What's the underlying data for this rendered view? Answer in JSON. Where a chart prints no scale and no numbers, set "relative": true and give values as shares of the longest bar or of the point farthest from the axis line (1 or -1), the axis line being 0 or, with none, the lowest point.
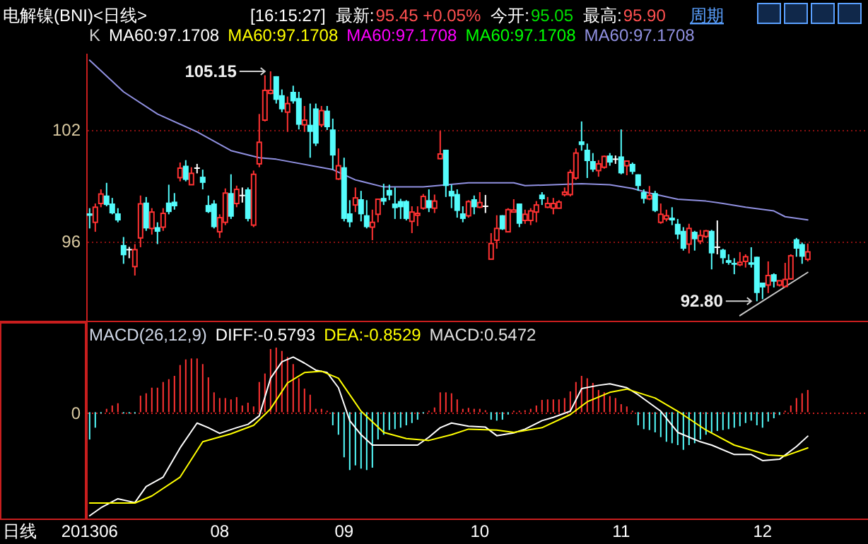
{
  "chart_data": [
    {
      "type": "candlestick",
      "title": "电解镍(BNI)<日线>",
      "tick_labels": "y",
      "categories": [
        "201306",
        null,
        null,
        null,
        null,
        null,
        null,
        null,
        null,
        null,
        null,
        null,
        null,
        null,
        null,
        null,
        null,
        null,
        null,
        null,
        null,
        null,
        null,
        "08",
        null,
        null,
        null,
        null,
        null,
        null,
        null,
        null,
        null,
        null,
        null,
        null,
        null,
        null,
        null,
        null,
        null,
        null,
        null,
        null,
        null,
        "09",
        null,
        null,
        null,
        null,
        null,
        null,
        null,
        null,
        null,
        null,
        null,
        null,
        null,
        null,
        null,
        null,
        null,
        null,
        null,
        null,
        null,
        null,
        null,
        "10",
        null,
        null,
        null,
        null,
        null,
        null,
        null,
        null,
        null,
        null,
        null,
        null,
        null,
        null,
        null,
        null,
        null,
        null,
        null,
        null,
        null,
        null,
        null,
        null,
        "11",
        null,
        null,
        null,
        null,
        null,
        null,
        null,
        null,
        null,
        null,
        null,
        null,
        null,
        null,
        null,
        null,
        null,
        null,
        null,
        null,
        null,
        null,
        null,
        null,
        "12",
        null,
        null,
        null,
        null,
        null,
        null,
        null,
        null
      ],
      "ohlc": [
        [
          97.52,
          97.8,
          96.71,
          97.39
        ],
        [
          97.04,
          98.05,
          96.53,
          97.85
        ],
        [
          98.05,
          98.81,
          97.85,
          98.56
        ],
        [
          98.48,
          99.16,
          97.9,
          97.97
        ],
        [
          98.05,
          98.35,
          97.47,
          97.52
        ],
        [
          97.52,
          97.8,
          97.04,
          97.14
        ],
        [
          95.82,
          96.25,
          94.81,
          95.27
        ],
        [
          95.57,
          95.72,
          95.11,
          95.57
        ],
        [
          94.66,
          95.87,
          94.18,
          95.57
        ],
        [
          96.2,
          98.48,
          95.7,
          98.03
        ],
        [
          98.1,
          98.4,
          96.58,
          96.71
        ],
        [
          96.71,
          97.8,
          96.38,
          97.59
        ],
        [
          96.78,
          97.04,
          95.87,
          96.53
        ],
        [
          96.78,
          97.8,
          96.58,
          97.52
        ],
        [
          98.1,
          99.06,
          97.47,
          97.59
        ],
        [
          98.15,
          98.61,
          97.72,
          97.9
        ],
        [
          99.44,
          100.25,
          99.24,
          99.95
        ],
        [
          100.08,
          100.38,
          99.24,
          99.32
        ],
        [
          99.06,
          100.0,
          99.06,
          99.67
        ],
        [
          99.95,
          100.18,
          99.67,
          99.95
        ],
        [
          99.49,
          99.87,
          98.81,
          99.16
        ],
        [
          97.97,
          98.48,
          97.54,
          97.59
        ],
        [
          98.05,
          98.23,
          96.71,
          96.78
        ],
        [
          96.53,
          97.47,
          96.2,
          97.29
        ],
        [
          97.04,
          98.86,
          96.89,
          98.61
        ],
        [
          98.61,
          99.62,
          97.22,
          97.34
        ],
        [
          98.05,
          99.01,
          97.85,
          98.81
        ],
        [
          98.48,
          98.91,
          98.1,
          98.48
        ],
        [
          98.81,
          98.91,
          97.09,
          97.22
        ],
        [
          96.89,
          99.82,
          96.78,
          99.62
        ],
        [
          100.18,
          102.86,
          100.0,
          101.34
        ],
        [
          102.53,
          104.94,
          102.46,
          104.13
        ],
        [
          103.97,
          105.15,
          103.92,
          104.13
        ],
        [
          104.89,
          104.89,
          103.42,
          103.62
        ],
        [
          103.87,
          104.18,
          102.96,
          103.11
        ],
        [
          102.96,
          103.8,
          101.9,
          103.42
        ],
        [
          104.05,
          104.38,
          103.42,
          103.54
        ],
        [
          103.72,
          104.05,
          102.03,
          102.28
        ],
        [
          102.28,
          103.29,
          101.9,
          102.53
        ],
        [
          102.28,
          103.42,
          100.51,
          101.9
        ],
        [
          103.16,
          103.42,
          101.14,
          101.27
        ],
        [
          102.28,
          103.29,
          102.15,
          103.04
        ],
        [
          103.04,
          103.29,
          102.0,
          102.15
        ],
        [
          102.03,
          102.61,
          99.87,
          100.63
        ],
        [
          99.37,
          101.01,
          99.32,
          100.08
        ],
        [
          100.0,
          100.51,
          97.09,
          97.22
        ],
        [
          97.52,
          98.23,
          96.78,
          97.04
        ],
        [
          97.97,
          98.91,
          97.59,
          98.35
        ],
        [
          98.28,
          98.73,
          97.09,
          97.47
        ],
        [
          97.42,
          98.23,
          96.71,
          96.78
        ],
        [
          96.78,
          97.72,
          96.08,
          97.04
        ],
        [
          97.47,
          98.3,
          97.04,
          98.28
        ],
        [
          98.35,
          99.11,
          97.97,
          98.15
        ],
        [
          98.78,
          99.06,
          98.23,
          98.48
        ],
        [
          98.05,
          98.91,
          97.22,
          97.8
        ],
        [
          98.18,
          98.3,
          97.22,
          97.85
        ],
        [
          98.18,
          98.23,
          97.14,
          97.22
        ],
        [
          97.09,
          97.9,
          96.46,
          97.59
        ],
        [
          97.42,
          97.9,
          96.84,
          97.52
        ],
        [
          97.8,
          98.56,
          97.72,
          98.43
        ],
        [
          98.23,
          98.81,
          97.59,
          97.8
        ],
        [
          97.8,
          98.53,
          97.54,
          98.18
        ],
        [
          100.46,
          101.95,
          100.43,
          100.71
        ],
        [
          100.94,
          100.94,
          98.4,
          98.99
        ],
        [
          98.73,
          99.06,
          97.8,
          98.43
        ],
        [
          98.56,
          98.81,
          97.29,
          97.65
        ],
        [
          97.52,
          97.9,
          97.04,
          97.22
        ],
        [
          97.39,
          98.23,
          97.29,
          98.15
        ],
        [
          98.28,
          98.48,
          97.47,
          97.85
        ],
        [
          97.85,
          98.66,
          97.8,
          98.1
        ],
        [
          97.9,
          98.51,
          97.54,
          97.9
        ],
        [
          95.06,
          96.46,
          95.06,
          95.9
        ],
        [
          96.08,
          97.42,
          95.62,
          96.71
        ],
        [
          97.42,
          97.42,
          96.63,
          96.66
        ],
        [
          96.53,
          97.8,
          96.53,
          97.72
        ],
        [
          97.59,
          98.28,
          97.59,
          97.7
        ],
        [
          98.05,
          98.05,
          96.78,
          96.96
        ],
        [
          97.14,
          97.72,
          96.96,
          97.47
        ],
        [
          97.14,
          97.8,
          96.89,
          97.65
        ],
        [
          97.59,
          98.18,
          97.04,
          97.97
        ],
        [
          98.53,
          98.66,
          97.97,
          98.28
        ],
        [
          97.85,
          98.4,
          97.8,
          98.05
        ],
        [
          97.8,
          98.35,
          97.47,
          98.05
        ],
        [
          97.8,
          98.23,
          97.77,
          98.13
        ],
        [
          98.53,
          98.91,
          98.43,
          98.66
        ],
        [
          98.53,
          99.87,
          98.43,
          99.72
        ],
        [
          99.42,
          101.01,
          99.32,
          100.76
        ],
        [
          101.39,
          102.46,
          100.89,
          101.19
        ],
        [
          100.94,
          101.27,
          99.42,
          100.33
        ],
        [
          100.33,
          100.76,
          99.75,
          99.87
        ],
        [
          99.82,
          100.38,
          99.49,
          100.18
        ],
        [
          100.0,
          100.63,
          99.92,
          100.58
        ],
        [
          100.63,
          100.76,
          100.08,
          100.25
        ],
        [
          100.43,
          100.63,
          100.18,
          100.43
        ],
        [
          100.58,
          102.03,
          99.62,
          99.67
        ],
        [
          100.08,
          100.33,
          99.57,
          100.33
        ],
        [
          100.18,
          100.25,
          99.62,
          99.75
        ],
        [
          99.62,
          99.62,
          98.73,
          98.99
        ],
        [
          98.66,
          98.81,
          98.05,
          98.3
        ],
        [
          98.3,
          98.99,
          98.23,
          98.48
        ],
        [
          98.61,
          98.73,
          97.59,
          97.65
        ],
        [
          97.04,
          98.05,
          96.96,
          97.47
        ],
        [
          97.22,
          97.72,
          97.09,
          97.39
        ],
        [
          97.29,
          97.85,
          96.89,
          97.14
        ],
        [
          96.96,
          97.22,
          96.13,
          96.38
        ],
        [
          96.58,
          96.78,
          95.52,
          95.62
        ],
        [
          95.87,
          96.96,
          95.37,
          96.71
        ],
        [
          96.53,
          96.58,
          95.52,
          96.13
        ],
        [
          96.03,
          96.63,
          95.87,
          96.33
        ],
        [
          96.28,
          96.63,
          96.2,
          96.58
        ],
        [
          96.58,
          96.63,
          94.51,
          95.37
        ],
        [
          95.7,
          97.14,
          95.32,
          95.7
        ],
        [
          95.57,
          95.62,
          94.81,
          95.11
        ],
        [
          95.01,
          95.32,
          94.76,
          94.86
        ],
        [
          94.86,
          95.11,
          94.25,
          94.76
        ],
        [
          94.76,
          95.44,
          94.68,
          94.89
        ],
        [
          94.94,
          95.32,
          94.61,
          95.19
        ],
        [
          94.89,
          95.7,
          94.61,
          94.76
        ],
        [
          95.19,
          95.19,
          92.8,
          93.24
        ],
        [
          93.8,
          93.8,
          92.91,
          93.54
        ],
        [
          93.67,
          94.94,
          93.24,
          94.18
        ],
        [
          94.25,
          94.3,
          93.54,
          93.85
        ],
        [
          93.67,
          93.92,
          93.59,
          93.9
        ],
        [
          93.59,
          94.86,
          93.54,
          93.97
        ],
        [
          94.0,
          95.32,
          93.95,
          95.24
        ],
        [
          96.13,
          96.2,
          95.19,
          95.62
        ],
        [
          95.87,
          95.95,
          94.81,
          95.19
        ],
        [
          95.05,
          95.9,
          94.94,
          95.45
        ]
      ],
      "series": [
        {
          "name": "MA60:97.1708",
          "type": "line",
          "color": "#9090e0",
          "values": [
            105.75,
            null,
            null,
            null,
            null,
            null,
            104.05,
            null,
            null,
            null,
            null,
            null,
            102.86,
            null,
            null,
            null,
            null,
            null,
            null,
            101.9,
            null,
            null,
            null,
            null,
            null,
            100.89,
            null,
            null,
            null,
            null,
            100.51,
            null,
            null,
            100.43,
            null,
            null,
            null,
            null,
            null,
            null,
            null,
            null,
            null,
            99.87,
            null,
            null,
            null,
            99.32,
            null,
            null,
            null,
            null,
            98.94,
            null,
            null,
            null,
            null,
            null,
            null,
            98.94,
            null,
            null,
            null,
            null,
            null,
            null,
            null,
            99.16,
            null,
            null,
            null,
            null,
            null,
            null,
            null,
            99.16,
            null,
            99.01,
            null,
            null,
            null,
            null,
            null,
            null,
            null,
            null,
            null,
            99.11,
            null,
            null,
            null,
            null,
            99.06,
            null,
            null,
            null,
            98.86,
            null,
            null,
            98.61,
            null,
            null,
            null,
            null,
            98.28,
            null,
            null,
            null,
            null,
            98.18,
            null,
            null,
            98.05,
            null,
            null,
            null,
            97.85,
            null,
            null,
            null,
            null,
            97.65,
            null,
            97.34,
            null,
            null,
            null,
            97.17
          ]
        },
        {
          "type": "line",
          "color": "#c8c8c8",
          "values": [
            null,
            null,
            null,
            null,
            null,
            null,
            null,
            null,
            null,
            null,
            null,
            null,
            null,
            null,
            null,
            null,
            null,
            null,
            null,
            null,
            null,
            null,
            null,
            null,
            null,
            null,
            null,
            null,
            null,
            null,
            null,
            null,
            null,
            null,
            null,
            null,
            null,
            null,
            null,
            null,
            null,
            null,
            null,
            null,
            null,
            null,
            null,
            null,
            null,
            null,
            null,
            null,
            null,
            null,
            null,
            null,
            null,
            null,
            null,
            null,
            null,
            null,
            null,
            null,
            null,
            null,
            null,
            null,
            null,
            null,
            null,
            null,
            null,
            null,
            null,
            null,
            null,
            null,
            null,
            null,
            null,
            null,
            null,
            null,
            null,
            null,
            null,
            null,
            null,
            null,
            null,
            null,
            null,
            null,
            null,
            null,
            null,
            null,
            null,
            null,
            null,
            null,
            null,
            null,
            null,
            null,
            null,
            null,
            null,
            null,
            null,
            null,
            null,
            null,
            null,
            92.03,
            null,
            null,
            null,
            null,
            null,
            null,
            null,
            null,
            null,
            null,
            null,
            94.35
          ]
        }
      ],
      "ylim": [
        91.75,
        106.1
      ],
      "yticks": [
        96,
        102
      ],
      "grid": "y",
      "annotations": [
        "[16:15:27]",
        "最新:",
        "95.45 +0.05%",
        "今开:",
        "95.05",
        "最高:",
        "95.90",
        "周期",
        "K",
        "MA60:97.1708",
        "MA60:97.1708",
        "MA60:97.1708",
        "MA60:97.1708",
        "105.15",
        "92.80"
      ]
    },
    {
      "type": "bar",
      "title": "MACD(26,12,9)",
      "relative": true,
      "tick_labels": "x",
      "categories": [
        "201306",
        null,
        null,
        null,
        null,
        null,
        null,
        null,
        null,
        null,
        null,
        null,
        null,
        null,
        null,
        null,
        null,
        null,
        null,
        null,
        null,
        null,
        null,
        "08",
        null,
        null,
        null,
        null,
        null,
        null,
        null,
        null,
        null,
        null,
        null,
        null,
        null,
        null,
        null,
        null,
        null,
        null,
        null,
        null,
        null,
        "09",
        null,
        null,
        null,
        null,
        null,
        null,
        null,
        null,
        null,
        null,
        null,
        null,
        null,
        null,
        null,
        null,
        null,
        null,
        null,
        null,
        null,
        null,
        null,
        "10",
        null,
        null,
        null,
        null,
        null,
        null,
        null,
        null,
        null,
        null,
        null,
        null,
        null,
        null,
        null,
        null,
        null,
        null,
        null,
        null,
        null,
        null,
        null,
        null,
        "11",
        null,
        null,
        null,
        null,
        null,
        null,
        null,
        null,
        null,
        null,
        null,
        null,
        null,
        null,
        null,
        null,
        null,
        null,
        null,
        null,
        null,
        null,
        null,
        null,
        "12",
        null,
        null,
        null,
        null,
        null,
        null,
        null,
        null
      ],
      "series": [
        {
          "name": "DIFF:-0.5793",
          "type": "line",
          "color": "#ffffff",
          "values": [
            -1,
            null,
            -0.923,
            null,
            null,
            -0.836,
            null,
            null,
            -0.873,
            null,
            -0.718,
            null,
            null,
            -0.627,
            null,
            null,
            -0.345,
            null,
            null,
            -0.105,
            null,
            -0.15,
            null,
            -0.205,
            null,
            null,
            -0.15,
            null,
            -0.118,
            null,
            -0.036,
            null,
            0.327,
            null,
            0.486,
            null,
            0.532,
            null,
            0.473,
            null,
            0.405,
            null,
            0.382,
            null,
            0.236,
            null,
            -0.082,
            null,
            -0.218,
            null,
            -0.318,
            null,
            -0.318,
            null,
            null,
            null,
            -0.318,
            null,
            -0.318,
            null,
            -0.241,
            null,
            -0.15,
            null,
            -0.105,
            null,
            null,
            -0.136,
            null,
            null,
            -0.145,
            null,
            -0.227,
            null,
            null,
            -0.2,
            null,
            -0.164,
            null,
            null,
            -0.082,
            null,
            -0.05,
            null,
            null,
            0.009,
            null,
            0.227,
            null,
            null,
            0.259,
            null,
            0.273,
            null,
            null,
            0.236,
            null,
            0.168,
            null,
            null,
            null,
            0.009,
            null,
            null,
            -0.195,
            null,
            null,
            null,
            -0.286,
            null,
            -0.318,
            null,
            null,
            null,
            -0.409,
            null,
            null,
            -0.409,
            null,
            -0.468,
            null,
            null,
            -0.455,
            null,
            null,
            -0.332,
            null,
            -0.232
          ]
        },
        {
          "name": "DEA:-0.8529",
          "type": "line",
          "color": "#ffff00",
          "values": [
            -0.877,
            null,
            null,
            null,
            null,
            null,
            null,
            null,
            -0.877,
            null,
            null,
            -0.809,
            null,
            null,
            null,
            null,
            -0.627,
            null,
            null,
            null,
            -0.286,
            null,
            null,
            null,
            null,
            -0.209,
            null,
            null,
            null,
            -0.127,
            null,
            null,
            0.032,
            null,
            null,
            0.282,
            null,
            null,
            0.382,
            null,
            null,
            0.395,
            null,
            null,
            0.327,
            null,
            null,
            null,
            0.009,
            null,
            null,
            null,
            -0.195,
            null,
            null,
            null,
            -0.255,
            null,
            null,
            null,
            -0.273,
            null,
            null,
            null,
            -0.218,
            null,
            null,
            -0.164,
            null,
            null,
            null,
            null,
            -0.173,
            null,
            null,
            -0.195,
            null,
            null,
            null,
            null,
            -0.15,
            null,
            null,
            null,
            null,
            -0.023,
            null,
            null,
            0.1,
            null,
            null,
            null,
            0.191,
            null,
            null,
            0.223,
            null,
            null,
            null,
            null,
            0.136,
            null,
            null,
            null,
            0.009,
            null,
            null,
            null,
            null,
            -0.173,
            null,
            null,
            null,
            null,
            -0.318,
            null,
            null,
            null,
            null,
            null,
            -0.414,
            null,
            null,
            -0.423,
            null,
            null,
            null,
            -0.345
          ]
        },
        {
          "type": "bar",
          "values": [
            -0.264,
            -0.15,
            -0.01,
            0.032,
            0.064,
            0.086,
            -0.01,
            -0.01,
            -0.01,
            0.159,
            0.182,
            0.236,
            0.236,
            0.291,
            0.318,
            0.35,
            0.455,
            0.509,
            0.518,
            0.518,
            0.464,
            0.336,
            0.191,
            0.136,
            0.136,
            0.123,
            0.145,
            0.064,
            0.091,
            0.055,
            0.291,
            0.373,
            0.609,
            0.623,
            0.591,
            0.532,
            0.464,
            0.327,
            0.227,
            0.168,
            0.032,
            0.032,
            0.01,
            -0.127,
            -0.218,
            -0.436,
            -0.559,
            -0.514,
            -0.545,
            -0.559,
            -0.536,
            -0.264,
            -0.218,
            -0.173,
            -0.164,
            -0.15,
            -0.127,
            -0.105,
            -0.073,
            -0.01,
            0.01,
            0.045,
            0.191,
            0.191,
            0.182,
            0.123,
            0.032,
            0.041,
            0.032,
            0.032,
            0.018,
            -0.073,
            -0.082,
            -0.073,
            -0.023,
            0.005,
            0.01,
            0.018,
            0.032,
            0.064,
            0.118,
            0.123,
            0.123,
            0.123,
            0.136,
            0.2,
            0.291,
            0.35,
            0.327,
            0.282,
            0.214,
            0.191,
            0.155,
            0.136,
            0.077,
            0.055,
            0.005,
            -0.127,
            -0.164,
            -0.173,
            -0.195,
            -0.241,
            -0.286,
            -0.3,
            -0.318,
            -0.364,
            -0.318,
            -0.3,
            -0.264,
            -0.218,
            -0.195,
            -0.182,
            -0.173,
            -0.164,
            -0.15,
            -0.136,
            -0.105,
            -0.082,
            -0.127,
            -0.15,
            -0.091,
            -0.059,
            -0.027,
            0.005,
            0.064,
            0.136,
            0.182,
            0.214
          ],
          "colors": [
            "#54fcfc",
            "#54fcfc",
            "#54fcfc",
            "#ff3232",
            "#ff3232",
            "#ff3232",
            "#54fcfc",
            "#54fcfc",
            "#54fcfc",
            "#ff3232",
            "#ff3232",
            "#ff3232",
            "#ff3232",
            "#ff3232",
            "#ff3232",
            "#ff3232",
            "#ff3232",
            "#ff3232",
            "#ff3232",
            "#ff3232",
            "#ff3232",
            "#ff3232",
            "#ff3232",
            "#ff3232",
            "#ff3232",
            "#ff3232",
            "#ff3232",
            "#ff3232",
            "#ff3232",
            "#ff3232",
            "#ff3232",
            "#ff3232",
            "#ff3232",
            "#ff3232",
            "#ff3232",
            "#ff3232",
            "#ff3232",
            "#ff3232",
            "#ff3232",
            "#ff3232",
            "#ff3232",
            "#ff3232",
            "#ff3232",
            "#54fcfc",
            "#54fcfc",
            "#54fcfc",
            "#54fcfc",
            "#54fcfc",
            "#54fcfc",
            "#54fcfc",
            "#54fcfc",
            "#54fcfc",
            "#54fcfc",
            "#54fcfc",
            "#54fcfc",
            "#54fcfc",
            "#54fcfc",
            "#54fcfc",
            "#54fcfc",
            "#54fcfc",
            "#ff3232",
            "#ff3232",
            "#ff3232",
            "#ff3232",
            "#ff3232",
            "#ff3232",
            "#ff3232",
            "#ff3232",
            "#ff3232",
            "#ff3232",
            "#ff3232",
            "#54fcfc",
            "#54fcfc",
            "#54fcfc",
            "#54fcfc",
            "#ff3232",
            "#ff3232",
            "#ff3232",
            "#ff3232",
            "#ff3232",
            "#ff3232",
            "#ff3232",
            "#ff3232",
            "#ff3232",
            "#ff3232",
            "#ff3232",
            "#ff3232",
            "#ff3232",
            "#ff3232",
            "#ff3232",
            "#ff3232",
            "#ff3232",
            "#ff3232",
            "#ff3232",
            "#ff3232",
            "#ff3232",
            "#ff3232",
            "#54fcfc",
            "#54fcfc",
            "#54fcfc",
            "#54fcfc",
            "#54fcfc",
            "#54fcfc",
            "#54fcfc",
            "#54fcfc",
            "#54fcfc",
            "#54fcfc",
            "#54fcfc",
            "#54fcfc",
            "#54fcfc",
            "#54fcfc",
            "#54fcfc",
            "#54fcfc",
            "#54fcfc",
            "#54fcfc",
            "#54fcfc",
            "#54fcfc",
            "#54fcfc",
            "#54fcfc",
            "#54fcfc",
            "#54fcfc",
            "#54fcfc",
            "#54fcfc",
            "#ff3232",
            "#ff3232",
            "#ff3232",
            "#ff3232",
            "#ff3232"
          ]
        }
      ],
      "ref_lines": [
        {
          "axis": "y",
          "value": 0,
          "label": "0",
          "color": "#c81e1e",
          "line_style": "dotted"
        }
      ],
      "annotations": [
        "日线",
        "MACD:0.5472"
      ]
    }
  ]
}
